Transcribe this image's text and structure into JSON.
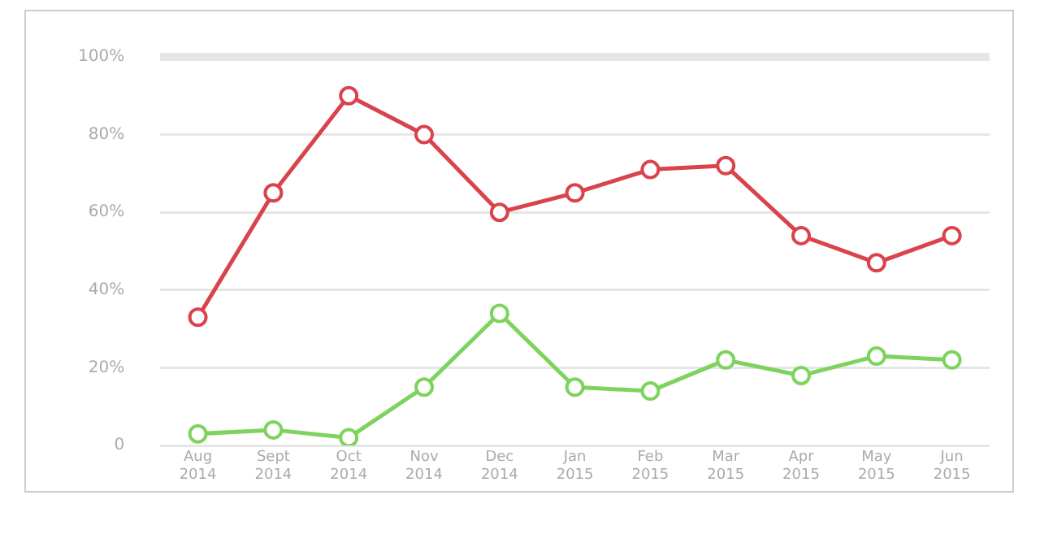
{
  "chart_data": {
    "type": "line",
    "categories": [
      "Aug\n2014",
      "Sept\n2014",
      "Oct\n2014",
      "Nov\n2014",
      "Dec\n2014",
      "Jan\n2015",
      "Feb\n2015",
      "Mar\n2015",
      "Apr\n2015",
      "May\n2015",
      "Jun\n2015"
    ],
    "series": [
      {
        "color": "#d9444c",
        "values": [
          33,
          65,
          90,
          80,
          60,
          65,
          71,
          72,
          54,
          47,
          54
        ]
      },
      {
        "color": "#7ed35e",
        "values": [
          3,
          4,
          2,
          15,
          34,
          15,
          14,
          22,
          18,
          23,
          22
        ]
      }
    ],
    "ylim": [
      0,
      100
    ],
    "yticks": [
      0,
      {
        "value": 20,
        "label": "20%"
      },
      {
        "value": 40,
        "label": "40%"
      },
      {
        "value": 60,
        "label": "60%"
      },
      {
        "value": 80,
        "label": "80%"
      },
      {
        "value": 100,
        "label": "100%"
      }
    ],
    "grid": "y",
    "legend": false,
    "marker": "circle",
    "line_style": "solid"
  }
}
